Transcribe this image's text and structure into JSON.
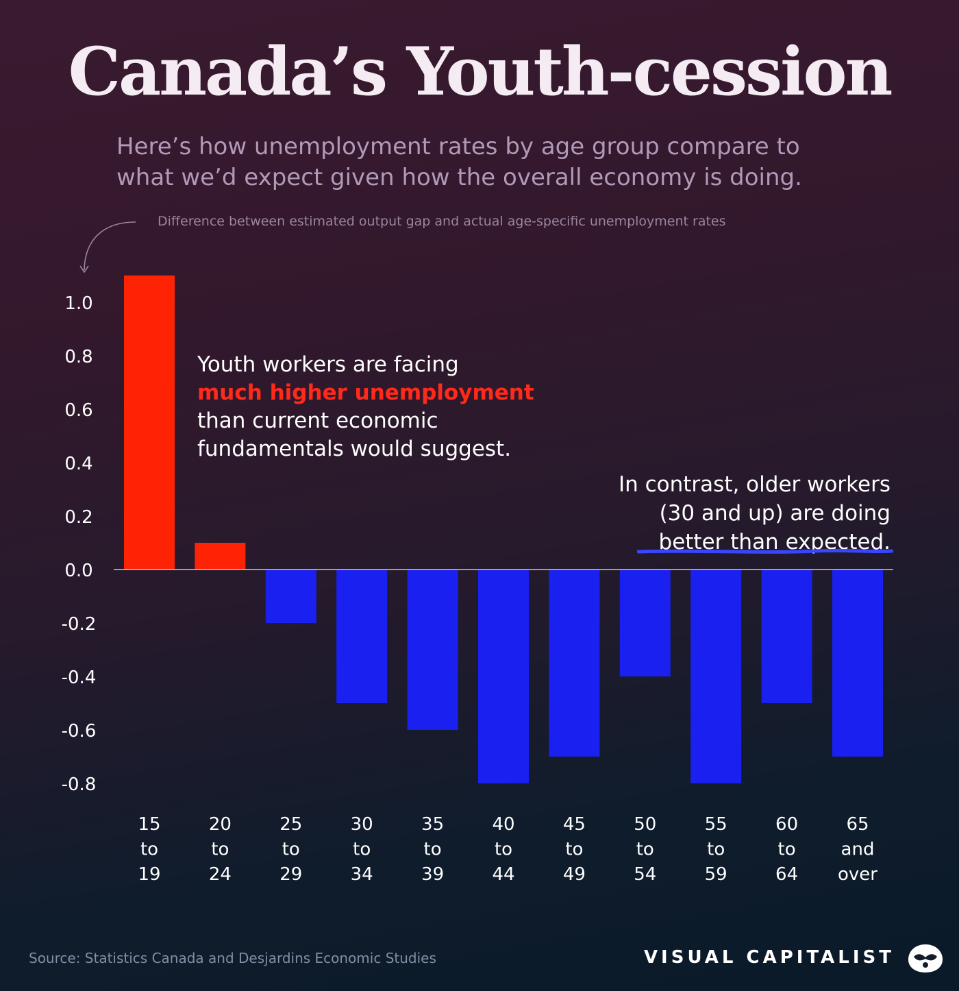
{
  "header": {
    "title": "Canada’s Youth-cession",
    "subtitle_line1": "Here’s how unemployment rates by age group compare to",
    "subtitle_line2": "what we’d expect given how the overall economy is doing.",
    "axis_note": "Difference between estimated output gap and actual age-specific unemployment rates"
  },
  "callouts": {
    "youth_line1": "Youth workers are facing",
    "youth_highlight": "much higher unemployment",
    "youth_line3": "than current economic",
    "youth_line4": "fundamentals would suggest.",
    "older_line1": "In contrast, older workers",
    "older_line2": "(30 and up) are doing",
    "older_line3": "better than expected."
  },
  "footer": {
    "source": "Source: Statistics Canada and Desjardins Economic Studies",
    "brand": "VISUAL CAPITALIST",
    "logo_icon": "visual-capitalist-logo-icon"
  },
  "colors": {
    "positive": "#ff2305",
    "negative": "#1a20f0",
    "axis_text": "#ffffff",
    "highlight": "#ff2a1a",
    "underline": "#3a45ff"
  },
  "chart_data": {
    "type": "bar",
    "categories": [
      "15 to 19",
      "20 to 24",
      "25 to 29",
      "30 to 34",
      "35 to 39",
      "40 to 44",
      "45 to 49",
      "50 to 54",
      "55 to 59",
      "60 to 64",
      "65 and over"
    ],
    "category_lines": [
      [
        "15",
        "to",
        "19"
      ],
      [
        "20",
        "to",
        "24"
      ],
      [
        "25",
        "to",
        "29"
      ],
      [
        "30",
        "to",
        "34"
      ],
      [
        "35",
        "to",
        "39"
      ],
      [
        "40",
        "to",
        "44"
      ],
      [
        "45",
        "to",
        "49"
      ],
      [
        "50",
        "to",
        "54"
      ],
      [
        "55",
        "to",
        "59"
      ],
      [
        "60",
        "to",
        "64"
      ],
      [
        "65",
        "and",
        "over"
      ]
    ],
    "values": [
      1.1,
      0.1,
      -0.2,
      -0.5,
      -0.6,
      -0.8,
      -0.7,
      -0.4,
      -0.8,
      -0.5,
      -0.7
    ],
    "yticks": [
      1.0,
      0.8,
      0.6,
      0.4,
      0.2,
      0.0,
      -0.2,
      -0.4,
      -0.6,
      -0.8
    ],
    "ytick_labels": [
      "1.0",
      "0.8",
      "0.6",
      "0.4",
      "0.2",
      "0.0",
      "-0.2",
      "-0.4",
      "-0.6",
      "-0.8"
    ],
    "ylim": [
      -0.8,
      1.1
    ],
    "title": "Canada’s Youth-cession",
    "xlabel": "",
    "ylabel": "Difference between estimated output gap and actual age-specific unemployment rates",
    "grid": false,
    "legend": "none"
  }
}
